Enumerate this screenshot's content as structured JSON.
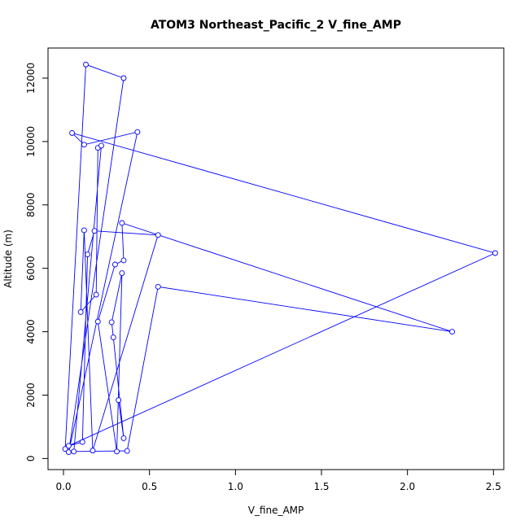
{
  "chart_data": {
    "type": "line",
    "title": "ATOM3 Northeast_Pacific_2 V_fine_AMP",
    "xlabel": "V_fine_AMP",
    "ylabel": "Altitude (m)",
    "xlim": [
      -0.09,
      2.56
    ],
    "ylim": [
      -350,
      12950
    ],
    "x_ticks": [
      0.0,
      0.5,
      1.0,
      1.5,
      2.0,
      2.5
    ],
    "x_tick_labels": [
      "0.0",
      "0.5",
      "1.0",
      "1.5",
      "2.0",
      "2.5"
    ],
    "y_ticks": [
      0,
      2000,
      4000,
      6000,
      8000,
      10000,
      12000
    ],
    "y_tick_labels": [
      "0",
      "2000",
      "4000",
      "6000",
      "8000",
      "10000",
      "12000"
    ],
    "grid": false,
    "legend": "none",
    "series": [
      {
        "color": "#0000ff",
        "marker": "open-circle",
        "x": [
          0.01,
          0.13,
          0.35,
          0.03,
          0.43,
          0.12,
          0.05,
          2.51,
          0.03,
          0.11,
          0.14,
          0.18,
          0.55,
          0.17,
          0.12,
          0.1,
          0.19,
          0.2,
          0.22,
          0.06,
          0.37,
          0.55,
          2.26,
          0.34,
          0.35,
          0.3,
          0.2,
          0.31,
          0.34,
          0.28,
          0.29,
          0.35,
          0.32
        ],
        "y": [
          300,
          12430,
          12000,
          200,
          10300,
          9900,
          10270,
          6480,
          400,
          520,
          6440,
          7180,
          7050,
          250,
          7200,
          4620,
          5170,
          9800,
          9870,
          220,
          240,
          5420,
          4000,
          7430,
          6250,
          6120,
          4320,
          220,
          5850,
          4300,
          3820,
          640,
          1840
        ]
      }
    ]
  }
}
